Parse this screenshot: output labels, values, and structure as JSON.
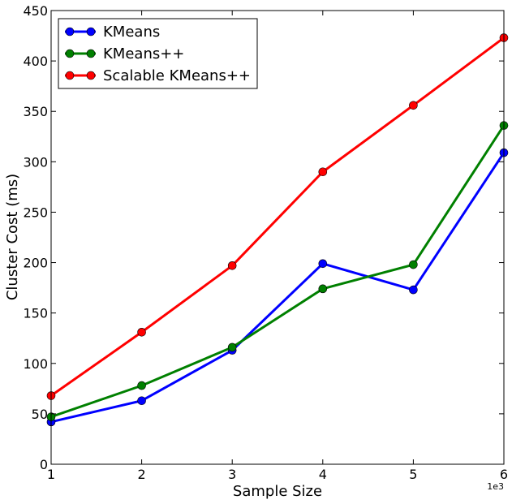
{
  "chart_data": {
    "type": "line",
    "x": [
      1,
      2,
      3,
      4,
      5,
      6
    ],
    "xlabel": "Sample Size",
    "ylabel": "Cluster Cost (ms)",
    "x_offset_label": "1e3",
    "xlim": [
      1,
      6
    ],
    "ylim": [
      0,
      450
    ],
    "xticks": [
      "1",
      "2",
      "3",
      "4",
      "5",
      "6"
    ],
    "yticks": [
      "0",
      "50",
      "100",
      "150",
      "200",
      "250",
      "300",
      "350",
      "400",
      "450"
    ],
    "grid": false,
    "legend_position": "top-left",
    "series": [
      {
        "name": "KMeans",
        "color": "#0000ff",
        "values": [
          42,
          63,
          113,
          199,
          173,
          309
        ]
      },
      {
        "name": "KMeans++",
        "color": "#008000",
        "values": [
          47,
          78,
          116,
          174,
          198,
          336
        ]
      },
      {
        "name": "Scalable KMeans++",
        "color": "#ff0000",
        "values": [
          68,
          131,
          197,
          290,
          356,
          423
        ]
      }
    ]
  }
}
